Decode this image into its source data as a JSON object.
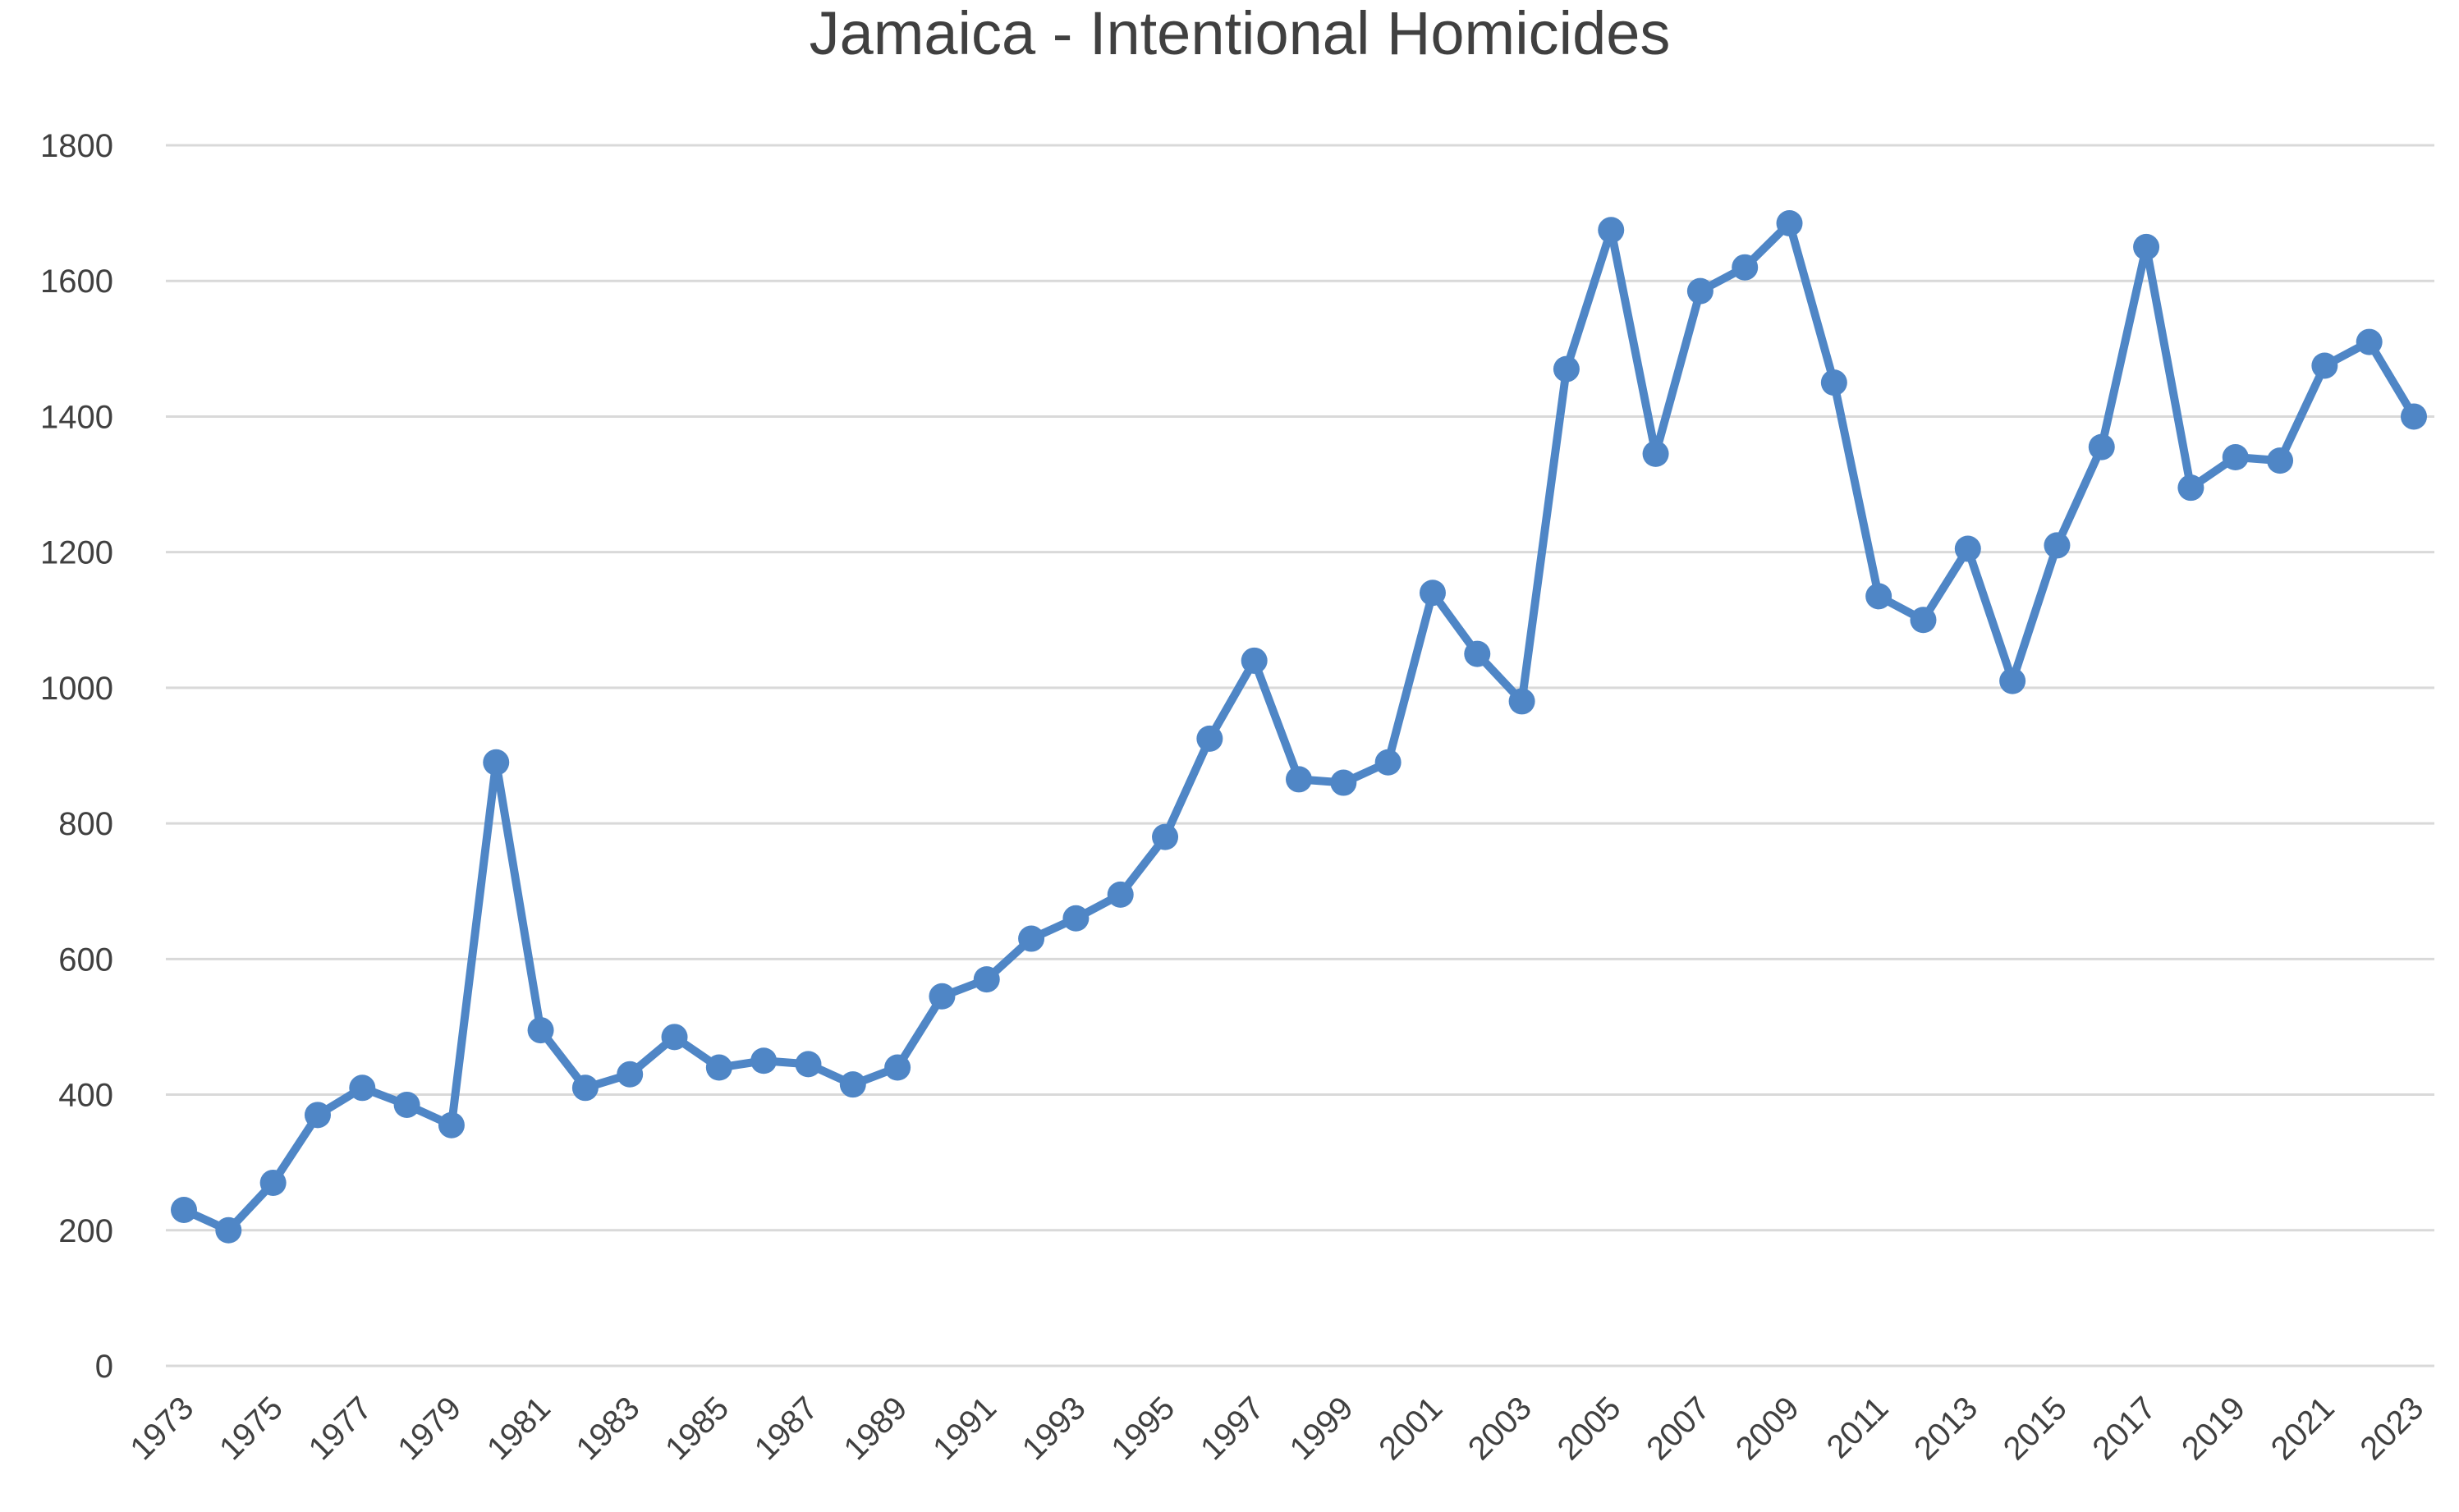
{
  "chart_data": {
    "type": "line",
    "title": "Jamaica - Intentional Homicides",
    "xlabel": "",
    "ylabel": "",
    "ylim": [
      0,
      1800
    ],
    "y_ticks": [
      0,
      200,
      400,
      600,
      800,
      1000,
      1200,
      1400,
      1600,
      1800
    ],
    "x_tick_labels": [
      "1973",
      "1975",
      "1977",
      "1979",
      "1981",
      "1983",
      "1985",
      "1987",
      "1989",
      "1991",
      "1993",
      "1995",
      "1997",
      "1999",
      "2001",
      "2003",
      "2005",
      "2007",
      "2009",
      "2011",
      "2013",
      "2015",
      "2017",
      "2019",
      "2021",
      "2023"
    ],
    "grid": "horizontal",
    "legend": "none",
    "series_color": "#4f86c6",
    "x": [
      1973,
      1974,
      1975,
      1976,
      1977,
      1978,
      1979,
      1980,
      1981,
      1982,
      1983,
      1984,
      1985,
      1986,
      1987,
      1988,
      1989,
      1990,
      1991,
      1992,
      1993,
      1994,
      1995,
      1996,
      1997,
      1998,
      1999,
      2000,
      2001,
      2002,
      2003,
      2004,
      2005,
      2006,
      2007,
      2008,
      2009,
      2010,
      2011,
      2012,
      2013,
      2014,
      2015,
      2016,
      2017,
      2018,
      2019,
      2020,
      2021,
      2022,
      2023
    ],
    "series": [
      {
        "values": [
          230,
          200,
          270,
          370,
          410,
          385,
          355,
          890,
          495,
          410,
          430,
          485,
          440,
          450,
          445,
          415,
          440,
          545,
          570,
          630,
          660,
          695,
          780,
          925,
          1040,
          865,
          860,
          890,
          1140,
          1050,
          980,
          1470,
          1675,
          1345,
          1585,
          1620,
          1685,
          1450,
          1135,
          1100,
          1205,
          1010,
          1210,
          1355,
          1650,
          1295,
          1340,
          1335,
          1475,
          1510,
          1400
        ]
      }
    ]
  }
}
